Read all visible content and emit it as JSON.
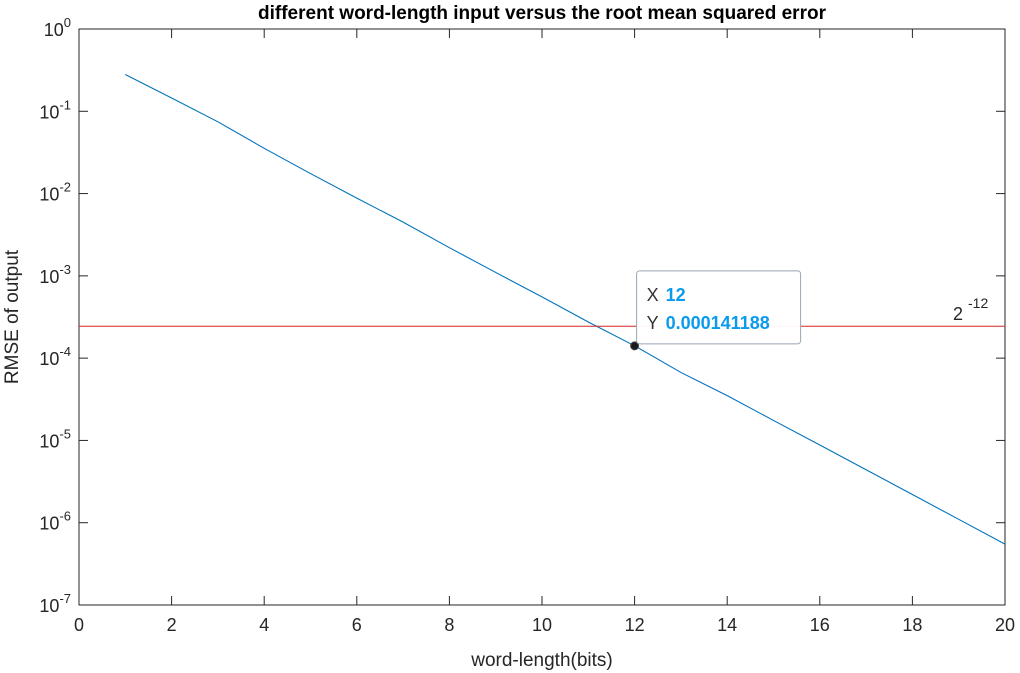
{
  "chart_data": {
    "type": "line",
    "title": "different word-length input versus the root mean squared error",
    "xlabel": "word-length(bits)",
    "ylabel": "RMSE of output",
    "xlim": [
      0,
      20
    ],
    "ylim": [
      1e-07,
      1
    ],
    "yscale": "log",
    "grid": false,
    "x_ticks": [
      "0",
      "2",
      "4",
      "6",
      "8",
      "10",
      "12",
      "14",
      "16",
      "18",
      "20"
    ],
    "y_ticks": [
      {
        "base": "10",
        "exp": "0"
      },
      {
        "base": "10",
        "exp": "-1"
      },
      {
        "base": "10",
        "exp": "-2"
      },
      {
        "base": "10",
        "exp": "-3"
      },
      {
        "base": "10",
        "exp": "-4"
      },
      {
        "base": "10",
        "exp": "-5"
      },
      {
        "base": "10",
        "exp": "-6"
      },
      {
        "base": "10",
        "exp": "-7"
      }
    ],
    "series": [
      {
        "color": "#0072BD",
        "x": [
          1,
          2,
          3,
          4,
          5,
          6,
          7,
          8,
          9,
          10,
          11,
          12,
          13,
          14,
          15,
          16,
          17,
          18,
          19,
          20
        ],
        "y": [
          0.28,
          0.145,
          0.0745,
          0.0355,
          0.0175,
          0.0088,
          0.0045,
          0.0022,
          0.0011,
          0.000555,
          0.000275,
          0.000141188,
          6.7e-05,
          3.5e-05,
          1.75e-05,
          8.8e-06,
          4.4e-06,
          2.2e-06,
          1.1e-06,
          5.5e-07
        ]
      }
    ],
    "reference_line": {
      "y": 0.000244140625,
      "color": "#D62728",
      "label_base": "2",
      "label_exp": "-12"
    },
    "datatip": {
      "x": 12,
      "y": 0.000141188,
      "x_key": "X",
      "y_key": "Y",
      "x_text": "12",
      "y_text": "0.000141188",
      "value_color": "#0A9AEF"
    }
  }
}
